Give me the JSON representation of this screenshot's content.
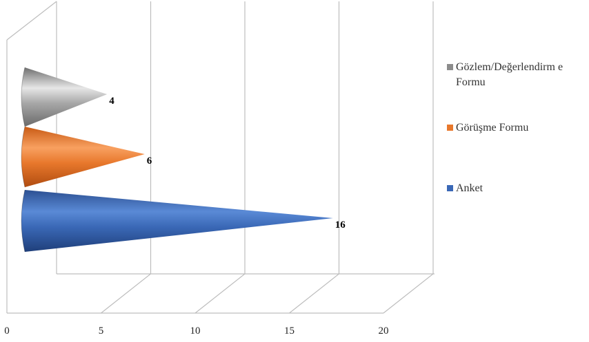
{
  "chart_data": {
    "type": "bar",
    "orientation": "horizontal",
    "shape": "cone-3d",
    "categories": [
      "Anket",
      "Görüşme Formu",
      "Gözlem/Değerlendirme Formu"
    ],
    "values": [
      16,
      6,
      4
    ],
    "data_labels": [
      "16",
      "6",
      "4"
    ],
    "colors": [
      "#3a68b6",
      "#e8782c",
      "#9a9a9a"
    ],
    "xlim": [
      0,
      20
    ],
    "x_ticks": [
      "0",
      "5",
      "10",
      "15",
      "20"
    ],
    "grid": true,
    "legend_position": "right",
    "legend": [
      {
        "label": "Gözlem/Değerlendirm e Formu",
        "color": "#8c8c8c"
      },
      {
        "label": "Görüşme Formu",
        "color": "#e8782c"
      },
      {
        "label": "Anket",
        "color": "#3a68b6"
      }
    ]
  }
}
